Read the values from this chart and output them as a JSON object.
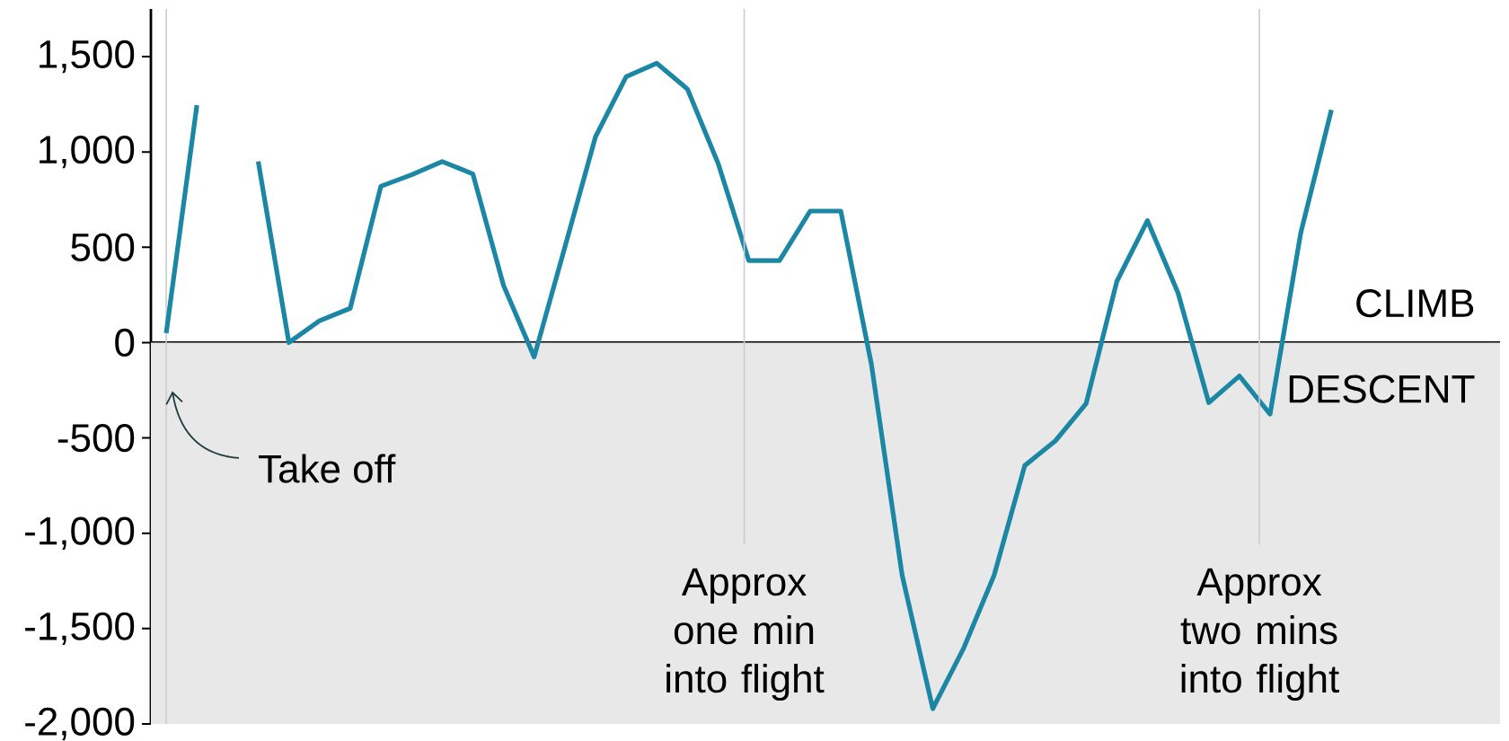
{
  "chart_data": {
    "type": "line",
    "categories": [
      null,
      null,
      null,
      null,
      null,
      null,
      null,
      null,
      null,
      null,
      null,
      null,
      null,
      null,
      null,
      null,
      null,
      null,
      null,
      null,
      null,
      null,
      null,
      null,
      null,
      null,
      null,
      null,
      null,
      null,
      null,
      null,
      null,
      null,
      null,
      null,
      null,
      null,
      null,
      null,
      null,
      null,
      null,
      null
    ],
    "series": [
      {
        "color": "#1b87a4",
        "values": [
          50,
          1245,
          null,
          null,
          null,
          null,
          null,
          null,
          null,
          null,
          null,
          null,
          null,
          null,
          null,
          null,
          null,
          null,
          null,
          null,
          null,
          null,
          null,
          null,
          null,
          null,
          null,
          null,
          null,
          null,
          null,
          null,
          null,
          null,
          null,
          null,
          null,
          null,
          null,
          null,
          null,
          null,
          null,
          null
        ]
      },
      {
        "color": "#1b87a4",
        "values": [
          null,
          null,
          null,
          950,
          0,
          115,
          180,
          820,
          880,
          950,
          885,
          300,
          -75,
          500,
          1080,
          1395,
          1465,
          1330,
          940,
          430,
          430,
          690,
          690,
          -115,
          -1220,
          -1920,
          -1605,
          -1220,
          -645,
          -515,
          -320,
          320,
          640,
          260,
          -315,
          -175,
          -375,
          575,
          1220,
          null,
          null,
          null,
          null,
          null
        ]
      }
    ],
    "line_style": "solid",
    "tick_labels": "y",
    "ylim": [
      -2000,
      1750
    ],
    "yticks": [
      {
        "value": -2000,
        "label": "-2,000"
      },
      {
        "value": -1500,
        "label": "-1,500"
      },
      {
        "value": -1000,
        "label": "-1,000"
      },
      -500,
      0,
      500,
      {
        "value": 1000,
        "label": "1,000"
      },
      {
        "value": 1500,
        "label": "1,500"
      }
    ],
    "bands": [
      {
        "axis": "y",
        "from": -2000,
        "to": 0,
        "label": "DESCENT",
        "color": "#e8e8e8"
      }
    ],
    "annotations": [
      "Take off",
      "CLIMB",
      "Approx one min into flight",
      "Approx two mins into flight"
    ]
  }
}
